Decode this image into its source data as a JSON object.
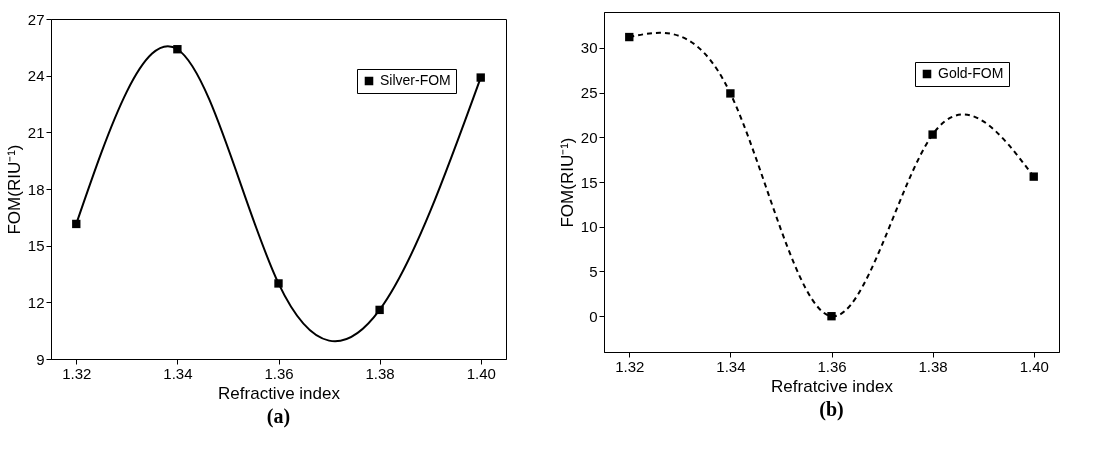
{
  "chart_data": [
    {
      "type": "line",
      "title": "(a)",
      "xlabel": "Refractive index",
      "ylabel": "FOM(RIU⁻¹)",
      "x": [
        1.32,
        1.34,
        1.36,
        1.38,
        1.4
      ],
      "series": [
        {
          "name": "Silver-FOM",
          "color": "#000000",
          "values": [
            16.15,
            25.4,
            13.0,
            11.6,
            23.9
          ]
        }
      ],
      "xlim": [
        1.315,
        1.405
      ],
      "xticks": [
        1.32,
        1.34,
        1.36,
        1.38,
        {
          "value": 1.4,
          "label": "1.40"
        }
      ],
      "ylim": [
        9,
        27
      ],
      "yticks": [
        9,
        12,
        15,
        18,
        21,
        24,
        27
      ],
      "grid": false,
      "legend": "top right",
      "marker": "square",
      "line_style": "solid"
    },
    {
      "type": "line",
      "title": "(b)",
      "xlabel": "Refratcive index",
      "ylabel": "FOM(RIU⁻¹)",
      "x": [
        1.32,
        1.34,
        1.36,
        1.38,
        1.4
      ],
      "series": [
        {
          "name": "Gold-FOM",
          "color": "#000000",
          "values": [
            31.2,
            24.9,
            0,
            20.3,
            15.6
          ]
        }
      ],
      "xlim": [
        1.315,
        1.405
      ],
      "xticks": [
        1.32,
        1.34,
        1.36,
        1.38,
        {
          "value": 1.4,
          "label": "1.40"
        }
      ],
      "ylim": [
        -4,
        34
      ],
      "yticks": [
        0,
        5,
        10,
        15,
        20,
        25,
        30
      ],
      "grid": false,
      "legend": "top right",
      "marker": "square",
      "line_style": "dashed"
    }
  ]
}
